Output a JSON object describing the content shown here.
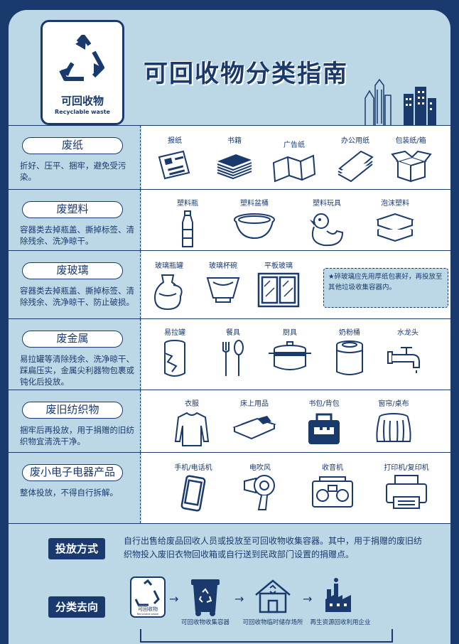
{
  "header": {
    "logo_cn": "可回收物",
    "logo_en": "Recyclable waste",
    "title": "可回收物分类指南"
  },
  "categories": [
    {
      "name": "废纸",
      "desc": "折好、压平、捆牢，避免受污染。",
      "items": [
        "报纸",
        "书籍",
        "广告纸",
        "办公用纸",
        "包装纸/箱"
      ],
      "icons": [
        "newspaper-icon",
        "books-icon",
        "flyer-icon",
        "office-paper-icon",
        "cardboard-box-icon"
      ]
    },
    {
      "name": "废塑料",
      "desc": "容器类去掉瓶盖、撕掉标签、清除残余、洗净晾干。",
      "items": [
        "塑料瓶",
        "塑料盆桶",
        "塑料玩具",
        "泡沫塑料"
      ],
      "icons": [
        "plastic-bottle-icon",
        "plastic-basin-icon",
        "rubber-duck-icon",
        "foam-box-icon"
      ]
    },
    {
      "name": "废玻璃",
      "desc": "容器类去掉瓶盖、撕掉标签、清除残余、洗净晾干、防止破损。",
      "items": [
        "玻璃瓶罐",
        "玻璃杯碗",
        "平板玻璃"
      ],
      "icons": [
        "glass-jar-icon",
        "glass-bowl-icon",
        "glass-window-icon"
      ],
      "note": "★碎玻璃应先用厚纸包裹好，再投放至其他垃圾收集容器内。"
    },
    {
      "name": "废金属",
      "desc": "易拉罐等清除残余、洗净晾干、踩扁压实，金属尖利器物包裹或钝化后投放。",
      "items": [
        "易拉罐",
        "餐具",
        "厨具",
        "奶粉桶",
        "水龙头"
      ],
      "icons": [
        "can-icon",
        "cutlery-icon",
        "pot-icon",
        "milk-powder-can-icon",
        "faucet-icon"
      ]
    },
    {
      "name": "废旧纺织物",
      "desc": "捆牢后再投放，用于捐赠的旧纺织物宜清洗干净。",
      "items": [
        "衣服",
        "床上用品",
        "书包/背包",
        "窗帘/桌布"
      ],
      "icons": [
        "sweater-icon",
        "bedding-icon",
        "backpack-icon",
        "curtain-icon"
      ]
    },
    {
      "name": "废小电子电器产品",
      "desc": "整体投放，不得自行拆解。",
      "items": [
        "手机/电话机",
        "电吹风",
        "收音机",
        "打印机/复印机"
      ],
      "icons": [
        "phone-icon",
        "hair-dryer-icon",
        "radio-icon",
        "printer-icon"
      ]
    }
  ],
  "method": {
    "label": "投放方式",
    "text": "自行出售给废品回收人员或投放至可回收物收集容器。其中，用于捐赠的废旧纺织物投入废旧衣物回收箱或自行送到民政部门设置的捐赠点。"
  },
  "flow": {
    "label": "分类去向",
    "start_cn": "可回收物",
    "start_en": "Recyclable waste",
    "steps": [
      "可回收物收集容器",
      "可回收物临时储存场所",
      "再生资源回收利用企业"
    ]
  },
  "colors": {
    "navy": "#1a3a6e",
    "light_blue": "#bcd8e6",
    "white": "#ffffff"
  }
}
